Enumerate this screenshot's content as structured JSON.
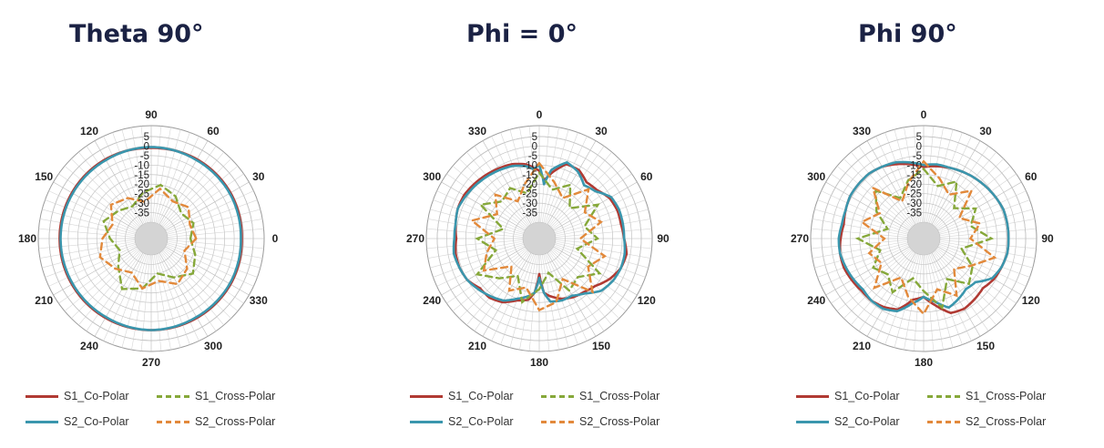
{
  "chart_data": [
    {
      "type": "polar",
      "title": "Theta 90°",
      "r_ticks": [
        5,
        0,
        -5,
        -10,
        -15,
        -20,
        -25,
        -30,
        -35
      ],
      "rlim": [
        -40,
        5
      ],
      "angle_labels": [
        "0",
        "30",
        "60",
        "90",
        "120",
        "150",
        "180",
        "210",
        "240",
        "270",
        "300",
        "330"
      ],
      "angle_label_offset_deg": 90,
      "angular_grid_step_deg": 5,
      "legend_placement": "bottom",
      "series": [
        {
          "name": "S1_Co-Polar",
          "color": "#b03a33",
          "style": "solid",
          "theta": [
            0,
            30,
            60,
            90,
            120,
            150,
            180,
            210,
            240,
            270,
            300,
            330,
            360
          ],
          "r": [
            -1,
            -0.5,
            -0.5,
            -0.5,
            -0.5,
            -0.5,
            -0.5,
            -0.5,
            -0.5,
            -1,
            -0.5,
            -0.5,
            -1
          ]
        },
        {
          "name": "S2_Co-Polar",
          "color": "#3a96ad",
          "style": "solid",
          "theta": [
            0,
            30,
            60,
            90,
            120,
            150,
            180,
            210,
            240,
            270,
            300,
            330,
            360
          ],
          "r": [
            -1.5,
            -1,
            -1,
            -0.5,
            -1,
            -1,
            -1,
            -1,
            -1,
            -0.5,
            -1,
            -1,
            -1.5
          ]
        },
        {
          "name": "S1_Cross-Polar",
          "color": "#86a83a",
          "style": "dashed",
          "theta": [
            0,
            20,
            40,
            60,
            80,
            100,
            120,
            140,
            160,
            180,
            200,
            220,
            240,
            260,
            280,
            300,
            320,
            340,
            360
          ],
          "r": [
            -28,
            -24,
            -20,
            -25,
            -30,
            -22,
            -18,
            -26,
            -31,
            -27,
            -22,
            -26,
            -29,
            -24,
            -20,
            -23,
            -28,
            -25,
            -28
          ]
        },
        {
          "name": "S2_Cross-Polar",
          "color": "#e2893b",
          "style": "dashed",
          "theta": [
            0,
            20,
            40,
            60,
            80,
            100,
            120,
            140,
            160,
            180,
            200,
            220,
            240,
            260,
            280,
            300,
            320,
            340,
            360
          ],
          "r": [
            -25,
            -30,
            -24,
            -21,
            -26,
            -22,
            -28,
            -24,
            -20,
            -23,
            -27,
            -21,
            -24,
            -29,
            -22,
            -26,
            -23,
            -27,
            -25
          ]
        }
      ]
    },
    {
      "type": "polar",
      "title": "Phi = 0°",
      "r_ticks": [
        5,
        0,
        -5,
        -10,
        -15,
        -20,
        -25,
        -30,
        -35
      ],
      "rlim": [
        -40,
        5
      ],
      "angle_labels": [
        "0",
        "30",
        "60",
        "90",
        "120",
        "150",
        "180",
        "210",
        "240",
        "270",
        "300",
        "330"
      ],
      "angle_label_offset_deg": 0,
      "angular_grid_step_deg": 5,
      "legend_placement": "bottom",
      "series": [
        {
          "name": "S1_Co-Polar",
          "color": "#b03a33",
          "style": "solid",
          "theta": [
            0,
            5,
            10,
            20,
            30,
            40,
            50,
            60,
            70,
            80,
            90,
            100,
            110,
            120,
            130,
            140,
            150,
            160,
            170,
            175,
            180,
            185,
            190,
            200,
            210,
            220,
            230,
            240,
            250,
            260,
            270,
            280,
            290,
            300,
            310,
            320,
            330,
            340,
            350,
            355,
            360
          ],
          "r": [
            -13,
            -18,
            -14,
            -7,
            -7,
            -10,
            -9,
            -6,
            -5,
            -5,
            -4,
            -2,
            -3,
            -6,
            -10,
            -12,
            -13,
            -15,
            -18,
            -20,
            -30,
            -20,
            -16,
            -14,
            -10,
            -8,
            -8,
            -5,
            -4,
            -4,
            -5,
            -4,
            -3,
            -3,
            -4,
            -5,
            -6,
            -7,
            -9,
            -11,
            -13
          ]
        },
        {
          "name": "S2_Co-Polar",
          "color": "#3a96ad",
          "style": "solid",
          "theta": [
            0,
            5,
            10,
            20,
            30,
            40,
            50,
            60,
            70,
            80,
            90,
            100,
            110,
            120,
            130,
            140,
            150,
            160,
            170,
            175,
            180,
            185,
            190,
            200,
            210,
            220,
            230,
            240,
            250,
            260,
            270,
            280,
            290,
            300,
            310,
            320,
            330,
            340,
            350,
            355,
            360
          ],
          "r": [
            -10,
            -20,
            -12,
            -6,
            -8,
            -12,
            -10,
            -5,
            -4,
            -4,
            -4,
            -3,
            -3,
            -4,
            -6,
            -11,
            -14,
            -14,
            -15,
            -20,
            -28,
            -20,
            -18,
            -15,
            -11,
            -9,
            -7,
            -5,
            -4,
            -3,
            -4,
            -4,
            -3,
            -4,
            -5,
            -6,
            -7,
            -8,
            -10,
            -12,
            -10
          ]
        },
        {
          "name": "S1_Cross-Polar",
          "color": "#86a83a",
          "style": "dashed",
          "theta": [
            0,
            15,
            30,
            45,
            60,
            75,
            90,
            105,
            120,
            135,
            150,
            165,
            180,
            195,
            210,
            225,
            240,
            255,
            270,
            285,
            300,
            315,
            330,
            345,
            360
          ],
          "r": [
            -14,
            -22,
            -16,
            -26,
            -13,
            -24,
            -18,
            -28,
            -12,
            -20,
            -17,
            -30,
            -22,
            -14,
            -26,
            -19,
            -11,
            -25,
            -16,
            -29,
            -13,
            -21,
            -18,
            -24,
            -14
          ]
        },
        {
          "name": "S2_Cross-Polar",
          "color": "#e2893b",
          "style": "dashed",
          "theta": [
            0,
            15,
            30,
            45,
            60,
            75,
            90,
            105,
            120,
            135,
            150,
            165,
            180,
            195,
            210,
            225,
            240,
            255,
            270,
            285,
            300,
            315,
            330,
            345,
            360
          ],
          "r": [
            -9,
            -18,
            -24,
            -12,
            -21,
            -15,
            -27,
            -13,
            -19,
            -9,
            -24,
            -14,
            -11,
            -22,
            -17,
            -28,
            -15,
            -20,
            -25,
            -12,
            -23,
            -16,
            -26,
            -19,
            -9
          ]
        }
      ]
    },
    {
      "type": "polar",
      "title": "Phi 90°",
      "r_ticks": [
        5,
        0,
        -5,
        -10,
        -15,
        -20,
        -25,
        -30,
        -35
      ],
      "rlim": [
        -40,
        5
      ],
      "angle_labels": [
        "0",
        "30",
        "60",
        "90",
        "120",
        "150",
        "180",
        "210",
        "240",
        "270",
        "300",
        "330"
      ],
      "angle_label_offset_deg": 0,
      "angular_grid_step_deg": 5,
      "legend_placement": "bottom",
      "series": [
        {
          "name": "S1_Co-Polar",
          "color": "#b03a33",
          "style": "solid",
          "theta": [
            0,
            10,
            20,
            30,
            40,
            50,
            60,
            70,
            80,
            90,
            100,
            110,
            120,
            130,
            140,
            150,
            160,
            170,
            180,
            190,
            200,
            210,
            220,
            230,
            240,
            250,
            260,
            270,
            280,
            290,
            300,
            310,
            320,
            330,
            340,
            350,
            360
          ],
          "r": [
            -11,
            -10,
            -9,
            -8,
            -7,
            -6,
            -5,
            -4,
            -4,
            -4,
            -4,
            -5,
            -6,
            -8,
            -7,
            -6,
            -7,
            -13,
            -18,
            -16,
            -9,
            -7,
            -6,
            -6,
            -5,
            -4,
            -4,
            -5,
            -6,
            -5,
            -4,
            -4,
            -4,
            -5,
            -7,
            -9,
            -11
          ]
        },
        {
          "name": "S2_Co-Polar",
          "color": "#3a96ad",
          "style": "solid",
          "theta": [
            0,
            10,
            20,
            30,
            40,
            50,
            60,
            70,
            80,
            90,
            100,
            110,
            120,
            130,
            140,
            150,
            160,
            170,
            180,
            190,
            200,
            210,
            220,
            230,
            240,
            250,
            260,
            270,
            280,
            290,
            300,
            310,
            320,
            330,
            340,
            350,
            360
          ],
          "r": [
            -10,
            -9,
            -9,
            -8,
            -7,
            -6,
            -5,
            -4,
            -4,
            -4,
            -4,
            -5,
            -7,
            -13,
            -14,
            -12,
            -10,
            -15,
            -18,
            -14,
            -8,
            -6,
            -6,
            -7,
            -6,
            -5,
            -4,
            -4,
            -5,
            -5,
            -4,
            -4,
            -4,
            -5,
            -6,
            -8,
            -10
          ]
        },
        {
          "name": "S1_Cross-Polar",
          "color": "#86a83a",
          "style": "dashed",
          "theta": [
            0,
            15,
            30,
            45,
            60,
            75,
            90,
            105,
            120,
            135,
            150,
            165,
            180,
            195,
            210,
            225,
            240,
            255,
            270,
            285,
            300,
            315,
            330,
            345,
            360
          ],
          "r": [
            -12,
            -20,
            -14,
            -26,
            -17,
            -23,
            -13,
            -28,
            -19,
            -15,
            -24,
            -11,
            -21,
            -27,
            -16,
            -22,
            -18,
            -25,
            -14,
            -29,
            -20,
            -13,
            -24,
            -17,
            -12
          ]
        },
        {
          "name": "S2_Cross-Polar",
          "color": "#e2893b",
          "style": "dashed",
          "theta": [
            0,
            15,
            30,
            45,
            60,
            75,
            90,
            105,
            120,
            135,
            150,
            165,
            180,
            195,
            210,
            225,
            240,
            255,
            270,
            285,
            300,
            315,
            330,
            345,
            360
          ],
          "r": [
            -8,
            -16,
            -22,
            -13,
            -27,
            -18,
            -24,
            -10,
            -20,
            -26,
            -14,
            -21,
            -9,
            -17,
            -25,
            -12,
            -23,
            -19,
            -28,
            -15,
            -22,
            -11,
            -26,
            -18,
            -8
          ]
        }
      ]
    }
  ]
}
